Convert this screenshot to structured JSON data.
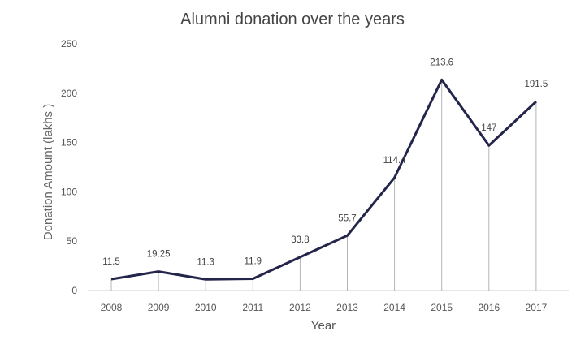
{
  "chart_data": {
    "type": "line",
    "title": "Alumni donation over the years",
    "xlabel": "Year",
    "ylabel": "Donation Amount (lakhs )",
    "categories": [
      "2008",
      "2009",
      "2010",
      "2011",
      "2012",
      "2013",
      "2014",
      "2015",
      "2016",
      "2017"
    ],
    "values": [
      11.5,
      19.25,
      11.3,
      11.9,
      33.8,
      55.7,
      114.4,
      213.6,
      147,
      191.5
    ],
    "data_labels": [
      "11.5",
      "19.25",
      "11.3",
      "11.9",
      "33.8",
      "55.7",
      "114.4",
      "213.6",
      "147",
      "191.5"
    ],
    "ylim": [
      0,
      250
    ],
    "yticks": [
      "0",
      "50",
      "100",
      "150",
      "200",
      "250"
    ],
    "grid": false,
    "drop_lines": true,
    "colors": {
      "line": "#24254a",
      "drop_line": "#b5b5b5",
      "axis": "#cfcfcf",
      "text": "#555555"
    }
  }
}
